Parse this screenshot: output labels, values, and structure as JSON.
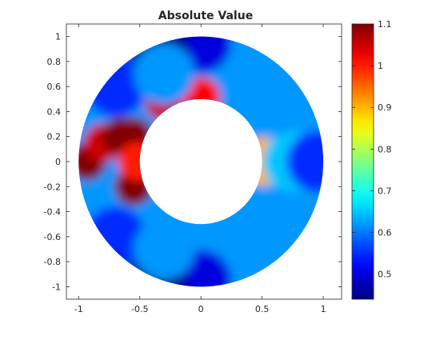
{
  "chart_data": {
    "type": "heatmap",
    "title": "Absolute Value",
    "xlabel": "",
    "ylabel": "",
    "xlim": [
      -1.1,
      1.15
    ],
    "ylim": [
      -1.1,
      1.1
    ],
    "xticks": [
      -1,
      -0.5,
      0,
      0.5,
      1
    ],
    "xtick_labels": [
      "-1",
      "-0.5",
      "0",
      "0.5",
      "1"
    ],
    "yticks": [
      1,
      0.8,
      0.6,
      0.4,
      0.2,
      0,
      -0.2,
      -0.4,
      -0.6,
      -0.8,
      -1
    ],
    "ytick_labels": [
      "1",
      "0.8",
      "0.6",
      "0.4",
      "0.2",
      "0",
      "-0.2",
      "-0.4",
      "-0.6",
      "-0.8",
      "-1"
    ],
    "domain": {
      "shape": "annulus",
      "inner_radius": 0.5,
      "outer_radius": 1.0
    },
    "colormap": "jet",
    "colorbar": {
      "range": [
        0.44,
        1.1
      ],
      "ticks": [
        1.1,
        1,
        0.9,
        0.8,
        0.7,
        0.6,
        0.5
      ],
      "tick_labels": [
        "1.1",
        "1",
        "0.9",
        "0.8",
        "0.7",
        "0.6",
        "0.5"
      ]
    },
    "field_samples": [
      {
        "x": -0.93,
        "y": 0.0,
        "value": 1.1
      },
      {
        "x": -0.8,
        "y": 0.15,
        "value": 1.05
      },
      {
        "x": -0.65,
        "y": 0.2,
        "value": 1.1
      },
      {
        "x": -0.55,
        "y": 0.2,
        "value": 1.1
      },
      {
        "x": -0.55,
        "y": -0.2,
        "value": 1.1
      },
      {
        "x": -0.52,
        "y": 0.0,
        "value": 1.0
      },
      {
        "x": -0.3,
        "y": 0.48,
        "value": 1.05
      },
      {
        "x": 0.0,
        "y": 0.52,
        "value": 1.02
      },
      {
        "x": 0.52,
        "y": 0.0,
        "value": 0.9
      },
      {
        "x": 0.75,
        "y": 0.0,
        "value": 0.65
      },
      {
        "x": 0.95,
        "y": 0.0,
        "value": 0.55
      },
      {
        "x": 0.0,
        "y": 0.95,
        "value": 0.5
      },
      {
        "x": 0.0,
        "y": -0.95,
        "value": 0.5
      },
      {
        "x": -0.35,
        "y": 0.9,
        "value": 0.45
      },
      {
        "x": -0.35,
        "y": -0.9,
        "value": 0.45
      },
      {
        "x": -0.7,
        "y": 0.6,
        "value": 0.55
      },
      {
        "x": -0.7,
        "y": -0.6,
        "value": 0.55
      },
      {
        "x": -0.3,
        "y": 0.7,
        "value": 0.62
      },
      {
        "x": -0.3,
        "y": -0.7,
        "value": 0.62
      }
    ]
  }
}
